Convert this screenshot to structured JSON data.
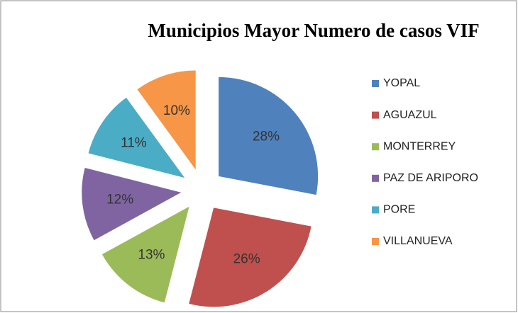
{
  "chart_data": {
    "type": "pie",
    "title": "Municipios Mayor Numero de casos VIF",
    "categories": [
      "YOPAL",
      "AGUAZUL",
      "MONTERREY",
      "PAZ DE ARIPORO",
      "PORE",
      "VILLANUEVA"
    ],
    "values": [
      28,
      26,
      13,
      12,
      11,
      10
    ],
    "value_labels": [
      "28%",
      "26%",
      "13%",
      "12%",
      "11%",
      "10%"
    ],
    "colors": [
      "#4f81bd",
      "#c0504d",
      "#9bbb59",
      "#8064a2",
      "#4bacc6",
      "#f79646"
    ],
    "legend": "right"
  }
}
